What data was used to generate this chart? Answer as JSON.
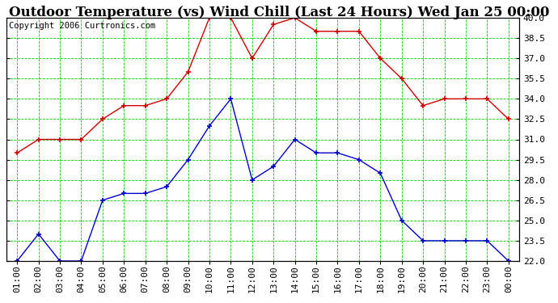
{
  "title": "Outdoor Temperature (vs) Wind Chill (Last 24 Hours) Wed Jan 25 00:00",
  "copyright": "Copyright 2006 Curtronics.com",
  "x_labels": [
    "01:00",
    "02:00",
    "03:00",
    "04:00",
    "05:00",
    "06:00",
    "07:00",
    "08:00",
    "09:00",
    "10:00",
    "11:00",
    "12:00",
    "13:00",
    "14:00",
    "15:00",
    "16:00",
    "17:00",
    "18:00",
    "19:00",
    "20:00",
    "21:00",
    "22:00",
    "23:00",
    "00:00"
  ],
  "temp_red": [
    30.0,
    31.0,
    31.0,
    31.0,
    32.5,
    33.5,
    33.5,
    34.0,
    36.0,
    40.0,
    40.0,
    37.0,
    39.5,
    40.0,
    39.0,
    39.0,
    39.0,
    37.0,
    35.5,
    33.5,
    34.0,
    34.0,
    34.0,
    32.5
  ],
  "wind_blue": [
    22.0,
    24.0,
    22.0,
    22.0,
    26.5,
    27.0,
    27.0,
    27.5,
    29.5,
    32.0,
    34.0,
    28.0,
    29.0,
    31.0,
    30.0,
    30.0,
    29.5,
    28.5,
    25.0,
    23.5,
    23.5,
    23.5,
    23.5,
    22.0
  ],
  "ylim_min": 22.0,
  "ylim_max": 40.0,
  "y_ticks": [
    22.0,
    23.5,
    25.0,
    26.5,
    28.0,
    29.5,
    31.0,
    32.5,
    34.0,
    35.5,
    37.0,
    38.5,
    40.0
  ],
  "background_color": "#ffffff",
  "plot_bg_color": "#ffffff",
  "grid_color": "#00cc00",
  "red_color": "#cc0000",
  "blue_color": "#0000cc",
  "border_color": "#000000",
  "title_fontsize": 12,
  "copyright_fontsize": 7.5,
  "tick_fontsize": 8
}
